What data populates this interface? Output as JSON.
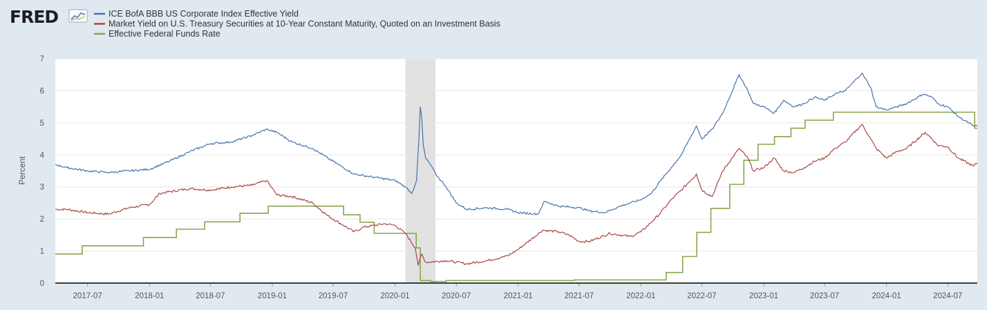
{
  "brand": {
    "logo_text": "FRED",
    "logo_icon": "fred-chart-icon"
  },
  "chart_data": {
    "type": "line",
    "title": "",
    "xlabel": "",
    "ylabel": "Percent",
    "ylim": [
      0,
      7
    ],
    "yticks": [
      0,
      1,
      2,
      3,
      4,
      5,
      6,
      7
    ],
    "xlim": [
      "2017-03-27",
      "2024-09-27"
    ],
    "xtick_labels": [
      "2017-07",
      "2018-01",
      "2018-07",
      "2019-01",
      "2019-07",
      "2020-01",
      "2020-07",
      "2021-01",
      "2021-07",
      "2022-01",
      "2022-07",
      "2023-01",
      "2023-07",
      "2024-01",
      "2024-07"
    ],
    "grid": true,
    "legend_position": "top-left",
    "recession_shading": {
      "start": "2020-02-01",
      "end": "2020-04-30",
      "color": "#e1e1e1"
    },
    "series": [
      {
        "name": "ICE BofA BBB US Corporate Index Effective Yield",
        "color": "#4572a7",
        "x": [
          "2017-03-27",
          "2017-05-01",
          "2017-07-01",
          "2017-09-01",
          "2017-11-01",
          "2018-01-01",
          "2018-03-01",
          "2018-05-01",
          "2018-07-01",
          "2018-09-01",
          "2018-11-01",
          "2018-12-15",
          "2019-01-15",
          "2019-03-01",
          "2019-05-01",
          "2019-06-15",
          "2019-08-01",
          "2019-09-01",
          "2019-11-01",
          "2020-01-01",
          "2020-02-01",
          "2020-02-20",
          "2020-03-05",
          "2020-03-12",
          "2020-03-16",
          "2020-03-20",
          "2020-03-25",
          "2020-04-01",
          "2020-04-15",
          "2020-05-01",
          "2020-06-01",
          "2020-07-01",
          "2020-08-01",
          "2020-10-01",
          "2020-12-01",
          "2021-01-01",
          "2021-03-01",
          "2021-03-20",
          "2021-05-01",
          "2021-07-01",
          "2021-08-01",
          "2021-09-15",
          "2021-11-01",
          "2021-12-01",
          "2022-01-01",
          "2022-02-01",
          "2022-03-01",
          "2022-04-01",
          "2022-05-01",
          "2022-06-15",
          "2022-07-01",
          "2022-08-01",
          "2022-09-01",
          "2022-10-20",
          "2022-11-15",
          "2022-12-01",
          "2023-01-01",
          "2023-02-01",
          "2023-03-01",
          "2023-04-01",
          "2023-05-01",
          "2023-06-01",
          "2023-07-01",
          "2023-08-01",
          "2023-09-01",
          "2023-10-20",
          "2023-11-15",
          "2023-12-01",
          "2024-01-01",
          "2024-02-01",
          "2024-03-01",
          "2024-04-20",
          "2024-05-15",
          "2024-06-01",
          "2024-07-01",
          "2024-08-01",
          "2024-09-15",
          "2024-09-27"
        ],
        "values": [
          3.7,
          3.6,
          3.5,
          3.45,
          3.5,
          3.55,
          3.8,
          4.1,
          4.35,
          4.4,
          4.6,
          4.8,
          4.7,
          4.4,
          4.2,
          3.9,
          3.6,
          3.4,
          3.3,
          3.2,
          3.0,
          2.8,
          3.2,
          4.5,
          5.5,
          5.2,
          4.3,
          3.9,
          3.7,
          3.4,
          3.0,
          2.5,
          2.3,
          2.35,
          2.3,
          2.2,
          2.15,
          2.55,
          2.4,
          2.35,
          2.25,
          2.2,
          2.4,
          2.5,
          2.6,
          2.8,
          3.2,
          3.6,
          4.0,
          4.9,
          4.5,
          4.8,
          5.3,
          6.5,
          6.0,
          5.6,
          5.5,
          5.3,
          5.7,
          5.5,
          5.6,
          5.8,
          5.7,
          5.9,
          6.0,
          6.55,
          6.1,
          5.5,
          5.4,
          5.5,
          5.6,
          5.9,
          5.8,
          5.6,
          5.5,
          5.2,
          4.9,
          4.9
        ]
      },
      {
        "name": "Market Yield on U.S. Treasury Securities at 10-Year Constant Maturity, Quoted on an Investment Basis",
        "color": "#aa4643",
        "x": [
          "2017-03-27",
          "2017-05-01",
          "2017-07-01",
          "2017-09-01",
          "2017-11-01",
          "2018-01-01",
          "2018-02-01",
          "2018-05-01",
          "2018-07-01",
          "2018-09-01",
          "2018-11-01",
          "2018-12-15",
          "2019-01-15",
          "2019-03-01",
          "2019-05-01",
          "2019-06-15",
          "2019-08-01",
          "2019-09-01",
          "2019-10-01",
          "2019-12-01",
          "2020-01-01",
          "2020-02-01",
          "2020-03-01",
          "2020-03-10",
          "2020-03-20",
          "2020-04-01",
          "2020-06-01",
          "2020-07-01",
          "2020-08-01",
          "2020-10-01",
          "2020-12-01",
          "2021-01-01",
          "2021-03-15",
          "2021-05-01",
          "2021-06-01",
          "2021-07-01",
          "2021-08-01",
          "2021-10-01",
          "2021-12-01",
          "2022-01-01",
          "2022-02-01",
          "2022-03-01",
          "2022-04-01",
          "2022-05-01",
          "2022-06-15",
          "2022-07-01",
          "2022-08-01",
          "2022-09-01",
          "2022-10-20",
          "2022-11-15",
          "2022-12-01",
          "2023-01-01",
          "2023-02-01",
          "2023-03-01",
          "2023-04-01",
          "2023-05-01",
          "2023-06-01",
          "2023-07-01",
          "2023-08-01",
          "2023-09-01",
          "2023-10-20",
          "2023-11-15",
          "2023-12-01",
          "2024-01-01",
          "2024-02-01",
          "2024-03-01",
          "2024-04-25",
          "2024-05-15",
          "2024-06-01",
          "2024-07-01",
          "2024-08-01",
          "2024-09-15",
          "2024-09-27"
        ],
        "values": [
          2.3,
          2.3,
          2.2,
          2.15,
          2.35,
          2.45,
          2.8,
          2.95,
          2.9,
          3.0,
          3.05,
          3.2,
          2.75,
          2.7,
          2.5,
          2.1,
          1.8,
          1.6,
          1.75,
          1.85,
          1.8,
          1.55,
          1.1,
          0.55,
          0.9,
          0.65,
          0.7,
          0.65,
          0.6,
          0.7,
          0.85,
          1.05,
          1.65,
          1.6,
          1.5,
          1.3,
          1.3,
          1.55,
          1.45,
          1.6,
          1.9,
          2.2,
          2.6,
          2.9,
          3.4,
          2.9,
          2.7,
          3.5,
          4.2,
          3.9,
          3.5,
          3.6,
          3.9,
          3.5,
          3.45,
          3.6,
          3.8,
          3.9,
          4.2,
          4.4,
          4.95,
          4.5,
          4.2,
          3.9,
          4.1,
          4.2,
          4.7,
          4.5,
          4.3,
          4.25,
          3.9,
          3.65,
          3.75
        ]
      },
      {
        "name": "Effective Federal Funds Rate",
        "color": "#89a54e",
        "steps": [
          [
            "2017-03-27",
            0.91
          ],
          [
            "2017-06-15",
            1.16
          ],
          [
            "2017-12-14",
            1.42
          ],
          [
            "2018-03-22",
            1.68
          ],
          [
            "2018-06-14",
            1.91
          ],
          [
            "2018-09-27",
            2.18
          ],
          [
            "2018-12-20",
            2.4
          ],
          [
            "2019-08-01",
            2.13
          ],
          [
            "2019-09-19",
            1.9
          ],
          [
            "2019-10-31",
            1.55
          ],
          [
            "2020-03-04",
            1.1
          ],
          [
            "2020-03-16",
            0.08
          ],
          [
            "2020-04-15",
            0.05
          ],
          [
            "2020-06-01",
            0.08
          ],
          [
            "2021-06-17",
            0.1
          ],
          [
            "2022-03-17",
            0.33
          ],
          [
            "2022-05-05",
            0.83
          ],
          [
            "2022-06-16",
            1.58
          ],
          [
            "2022-07-28",
            2.33
          ],
          [
            "2022-09-22",
            3.08
          ],
          [
            "2022-11-03",
            3.83
          ],
          [
            "2022-12-15",
            4.33
          ],
          [
            "2023-02-02",
            4.57
          ],
          [
            "2023-03-23",
            4.83
          ],
          [
            "2023-05-04",
            5.08
          ],
          [
            "2023-07-27",
            5.33
          ],
          [
            "2024-09-19",
            4.83
          ],
          [
            "2024-09-27",
            4.83
          ]
        ]
      }
    ]
  }
}
